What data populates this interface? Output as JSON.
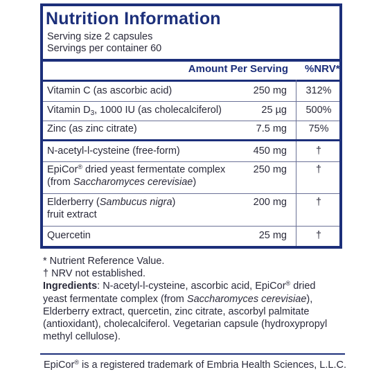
{
  "panel": {
    "title": "Nutrition Information",
    "serving_size": "Serving size  2 capsules",
    "servings_per_container": "Servings per container  60",
    "col_amount": "Amount Per Serving",
    "col_nrv": "%NRV*"
  },
  "rows": [
    {
      "name": "Vitamin C (as ascorbic acid)",
      "amount": "250 mg",
      "nrv": "312%"
    },
    {
      "name_pre": "Vitamin D",
      "name_sub": "3",
      "name_post": ", 1000 IU (as cholecalciferol)",
      "amount": "25 µg",
      "nrv": "500%"
    },
    {
      "name": "Zinc (as zinc citrate)",
      "amount": "7.5 mg",
      "nrv": "75%"
    },
    {
      "name": "N-acetyl-l-cysteine (free-form)",
      "amount": "450 mg",
      "nrv": "†"
    },
    {
      "name_pre": "EpiCor",
      "name_sup": "®",
      "name_mid": " dried yeast fermentate complex",
      "name_line2_pre": "(from ",
      "name_line2_it": "Saccharomyces cerevisiae",
      "name_line2_post": ")",
      "amount": "250 mg",
      "nrv": "†"
    },
    {
      "name_pre": "Elderberry (",
      "name_it": "Sambucus nigra",
      "name_post": ")",
      "name_line2": "fruit extract",
      "amount": "200 mg",
      "nrv": "†"
    },
    {
      "name": "Quercetin",
      "amount": "25 mg",
      "nrv": "†"
    }
  ],
  "notes": {
    "nrv_note": "* Nutrient Reference Value.",
    "not_established": "† NRV not established.",
    "ingredients_label": "Ingredients",
    "ing_l1_a": ": N-acetyl-l-cysteine, ascorbic acid, EpiCor",
    "ing_l1_sup": "®",
    "ing_l1_b": " dried",
    "ing_l2_a": "yeast fermentate complex (from ",
    "ing_l2_it": "Saccharomyces cerevisiae",
    "ing_l2_b": "),",
    "ing_l3": "Elderberry extract, quercetin, zinc citrate, ascorbyl palmitate",
    "ing_l4": "(antioxidant), cholecalciferol. Vegetarian capsule (hydroxypropyl",
    "ing_l5": "methyl cellulose)."
  },
  "footer": {
    "pre": "EpiCor",
    "sup": "®",
    "post": " is a registered trademark of Embria Health Sciences, L.L.C."
  },
  "colors": {
    "brand_blue": "#1c2f7a",
    "text": "#2a2a3a"
  }
}
